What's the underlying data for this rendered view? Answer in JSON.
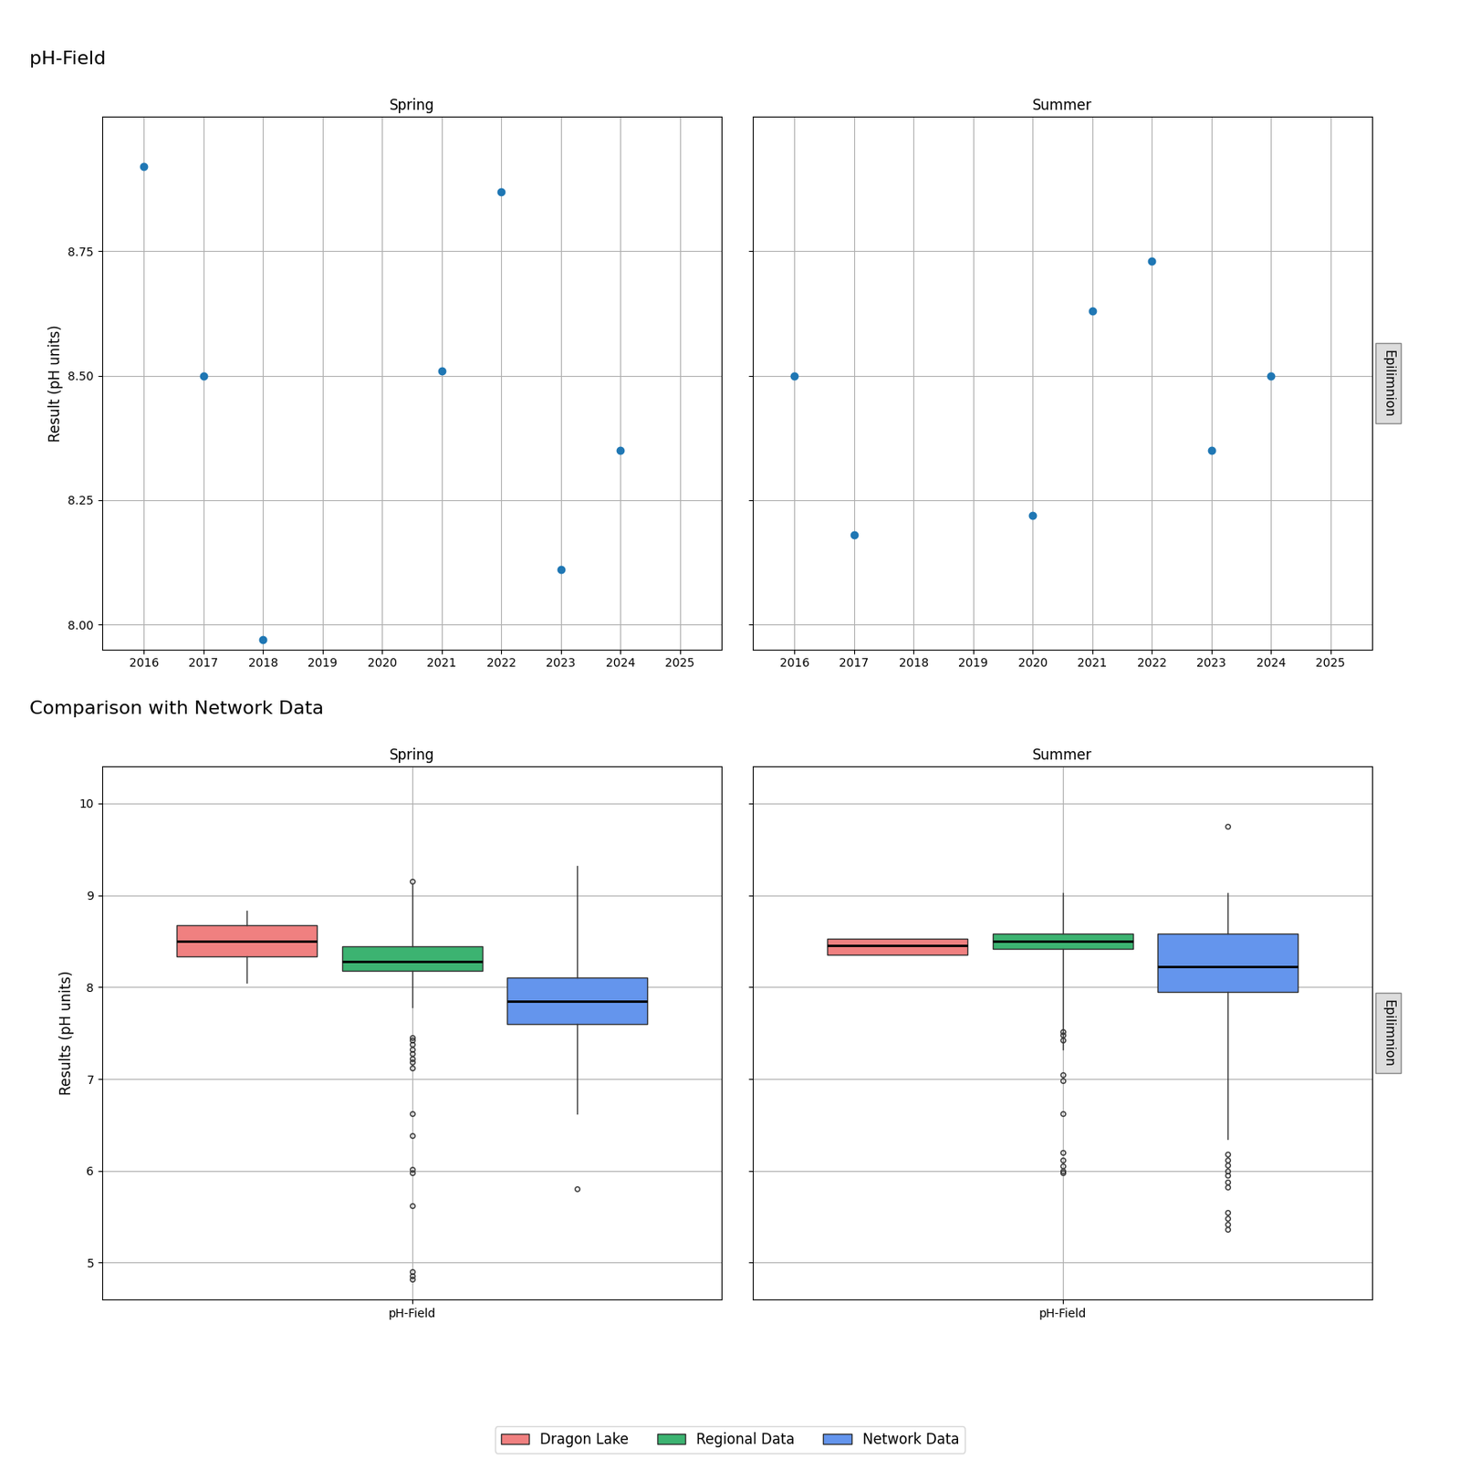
{
  "chart_data": [
    {
      "type": "scatter",
      "title": "pH-Field",
      "annotation": "Epilimnion",
      "ylabel": "Result (pH units)",
      "grid": true,
      "xlim": [
        2015.3,
        2025.7
      ],
      "xticks": [
        2016,
        2017,
        2018,
        2019,
        2020,
        2021,
        2022,
        2023,
        2024,
        2025
      ],
      "ylim": [
        7.95,
        9.02
      ],
      "yticks": [
        {
          "value": 8.0,
          "label": "8.00"
        },
        {
          "value": 8.25,
          "label": "8.25"
        },
        {
          "value": 8.5,
          "label": "8.50"
        },
        {
          "value": 8.75,
          "label": "8.75"
        }
      ],
      "facets": [
        {
          "title": "Spring",
          "x": [
            2016,
            2017,
            2018,
            2021,
            2022,
            2023,
            2024
          ],
          "values": [
            8.92,
            8.5,
            7.97,
            8.51,
            8.87,
            8.11,
            8.35
          ]
        },
        {
          "title": "Summer",
          "x": [
            2016,
            2017,
            2020,
            2021,
            2022,
            2023,
            2024
          ],
          "values": [
            8.5,
            8.18,
            8.22,
            8.63,
            8.73,
            8.35,
            8.5
          ]
        }
      ]
    },
    {
      "type": "box",
      "title": "Comparison with Network Data",
      "annotation": "Epilimnion",
      "ylabel": "Results (pH units)",
      "grid": true,
      "legend": "lower center",
      "categories": [
        "pH-Field"
      ],
      "ylim": [
        4.6,
        10.4
      ],
      "yticks": [
        5,
        6,
        7,
        8,
        9,
        10
      ],
      "facets": [
        {
          "title": "Spring"
        },
        {
          "title": "Summer"
        }
      ],
      "series": [
        {
          "name": "Dragon Lake",
          "color": "#F08080",
          "values": [
            {
              "q1": 8.33,
              "median": 8.5,
              "q3": 8.67,
              "whislo": 8.05,
              "whishi": 8.83,
              "fliers": []
            },
            {
              "q1": 8.35,
              "median": 8.45,
              "q3": 8.53,
              "whislo": 8.35,
              "whishi": 8.53,
              "fliers": []
            }
          ]
        },
        {
          "name": "Regional Data",
          "color": "#3CB371",
          "values": [
            {
              "q1": 8.18,
              "median": 8.28,
              "q3": 8.44,
              "whislo": 7.78,
              "whishi": 9.12,
              "fliers": [
                9.15,
                7.45,
                7.42,
                7.38,
                7.32,
                7.28,
                7.22,
                7.18,
                7.12,
                6.62,
                6.38,
                6.02,
                5.98,
                5.62,
                4.82,
                4.86,
                4.9
              ]
            },
            {
              "q1": 8.42,
              "median": 8.5,
              "q3": 8.58,
              "whislo": 7.32,
              "whishi": 9.02,
              "fliers": [
                7.52,
                7.48,
                7.42,
                7.05,
                6.98,
                6.62,
                6.2,
                6.12,
                6.05,
                6.0,
                5.98
              ]
            }
          ]
        },
        {
          "name": "Network Data",
          "color": "#6495ED",
          "values": [
            {
              "q1": 7.6,
              "median": 7.85,
              "q3": 8.1,
              "whislo": 6.62,
              "whishi": 9.32,
              "fliers": [
                5.8
              ]
            },
            {
              "q1": 7.95,
              "median": 8.22,
              "q3": 8.58,
              "whislo": 6.35,
              "whishi": 9.02,
              "fliers": [
                9.75,
                6.18,
                6.12,
                6.06,
                6.0,
                5.95,
                5.88,
                5.82,
                5.55,
                5.48,
                5.42,
                5.36
              ]
            }
          ]
        }
      ]
    }
  ]
}
